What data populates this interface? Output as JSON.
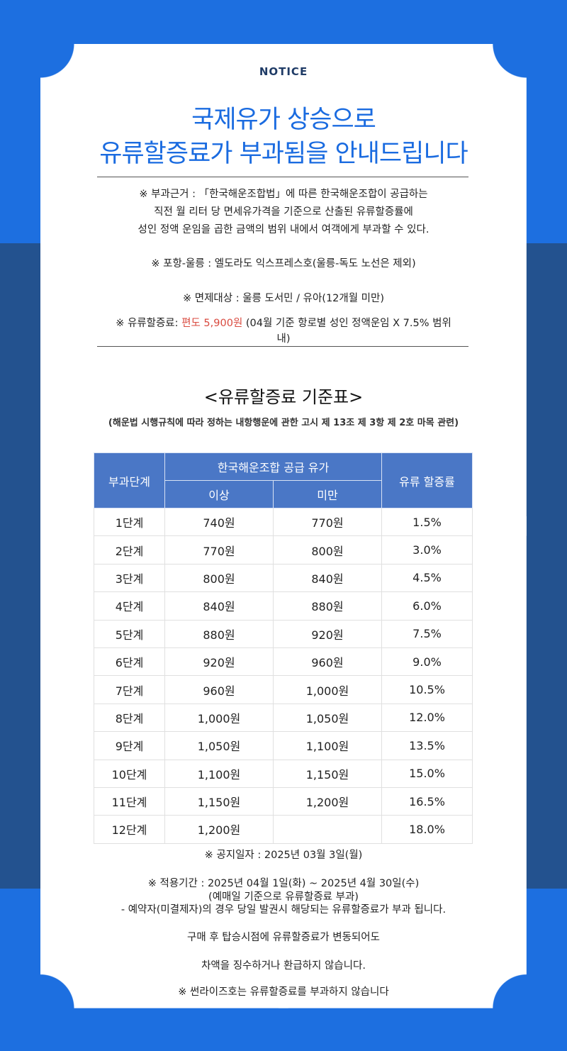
{
  "header": {
    "notice": "NOTICE",
    "title_line1": "국제유가 상승으로",
    "title_line2": "유류할증료가 부과됨을 안내드립니다"
  },
  "basis": {
    "line1": "※ 부과근거 : 「한국해운조합법」에 따른 한국해운조합이 공급하는",
    "line2": "직전 월 리터 당 면세유가격을 기준으로 산출된 유류할증률에",
    "line3": "성인 정액 운임을 곱한 금액의 범위 내에서 여객에게 부과할 수 있다."
  },
  "route": "※ 포항-울릉 : 엘도라도 익스프레스호(울릉-독도 노선은 제외)",
  "exempt": "※ 면제대상 : 울릉 도서민 / 유아(12개월 미만)",
  "surcharge": {
    "prefix": "※ 유류할증료: ",
    "amount": "편도 5,900원",
    "suffix_line1": " (04월 기준 항로별 성인 정액운임 X 7.5% 범위",
    "suffix_line2": "내)"
  },
  "table_title": "<유류할증료 기준표>",
  "table_note": "(해운법 시행규칙에 따라 정하는 내항행운에 관한 고시 제 13조 제 3항 제 2호 마목 관련)",
  "table": {
    "col_stage": "부과단계",
    "col_supply": "한국해운조합 공급 유가",
    "col_above": "이상",
    "col_below": "미만",
    "col_rate": "유류 할증률",
    "rows": [
      {
        "stage": "1단계",
        "above": "740원",
        "below": "770원",
        "rate": "1.5%"
      },
      {
        "stage": "2단계",
        "above": "770원",
        "below": "800원",
        "rate": "3.0%"
      },
      {
        "stage": "3단계",
        "above": "800원",
        "below": "840원",
        "rate": "4.5%"
      },
      {
        "stage": "4단계",
        "above": "840원",
        "below": "880원",
        "rate": "6.0%"
      },
      {
        "stage": "5단계",
        "above": "880원",
        "below": "920원",
        "rate": "7.5%"
      },
      {
        "stage": "6단계",
        "above": "920원",
        "below": "960원",
        "rate": "9.0%"
      },
      {
        "stage": "7단계",
        "above": "960원",
        "below": "1,000원",
        "rate": "10.5%"
      },
      {
        "stage": "8단계",
        "above": "1,000원",
        "below": "1,050원",
        "rate": "12.0%"
      },
      {
        "stage": "9단계",
        "above": "1,050원",
        "below": "1,100원",
        "rate": "13.5%"
      },
      {
        "stage": "10단계",
        "above": "1,100원",
        "below": "1,150원",
        "rate": "15.0%"
      },
      {
        "stage": "11단계",
        "above": "1,150원",
        "below": "1,200원",
        "rate": "16.5%"
      },
      {
        "stage": "12단계",
        "above": "1,200원",
        "below": "",
        "rate": "18.0%"
      }
    ]
  },
  "footer": {
    "notice_date": "※ 공지일자 : 2025년 03월 3일(월)",
    "period": "※ 적용기간 : 2025년 04월 1일(화) ~ 2025년 4월 30일(수)",
    "period_note": "(예매일 기준으로 유류할증료 부과)",
    "reservation": "- 예약자(미결제자)의 경우 당일 발권시 해당되는 유류할증료가 부과 됩니다.",
    "change1": "구매 후 탑승시점에 유류할증료가 변동되어도",
    "change2": "차액을 징수하거나 환급하지 않습니다.",
    "sunrise": "※ 썬라이즈호는 유류할증료를 부과하지 않습니다"
  }
}
